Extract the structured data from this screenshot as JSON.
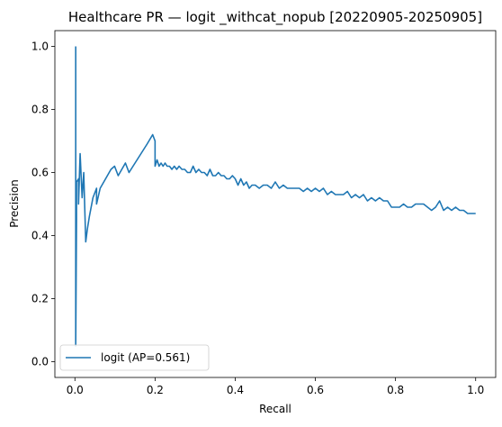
{
  "chart_data": {
    "type": "line",
    "title": "Healthcare PR — logit _withcat_nopub [20220905-20250905]",
    "xlabel": "Recall",
    "ylabel": "Precision",
    "xlim": [
      -0.05,
      1.05
    ],
    "ylim": [
      -0.05,
      1.05
    ],
    "xticks": [
      0.0,
      0.2,
      0.4,
      0.6,
      0.8,
      1.0
    ],
    "xtick_labels": [
      "0.0",
      "0.2",
      "0.4",
      "0.6",
      "0.8",
      "1.0"
    ],
    "yticks": [
      0.0,
      0.2,
      0.4,
      0.6,
      0.8,
      1.0
    ],
    "ytick_labels": [
      "0.0",
      "0.2",
      "0.4",
      "0.6",
      "0.8",
      "1.0"
    ],
    "grid": false,
    "legend_position": "lower-left",
    "series": [
      {
        "name": "logit (AP=0.561)",
        "color": "#1f77b4",
        "x": [
          0.002,
          0.002,
          0.004,
          0.004,
          0.009,
          0.009,
          0.013,
          0.018,
          0.018,
          0.022,
          0.027,
          0.027,
          0.031,
          0.036,
          0.045,
          0.054,
          0.054,
          0.063,
          0.072,
          0.081,
          0.09,
          0.099,
          0.108,
          0.108,
          0.117,
          0.126,
          0.135,
          0.15,
          0.165,
          0.18,
          0.194,
          0.194,
          0.2,
          0.2,
          0.205,
          0.21,
          0.215,
          0.22,
          0.225,
          0.23,
          0.236,
          0.242,
          0.248,
          0.254,
          0.26,
          0.267,
          0.274,
          0.281,
          0.288,
          0.295,
          0.302,
          0.309,
          0.316,
          0.323,
          0.33,
          0.337,
          0.344,
          0.351,
          0.358,
          0.365,
          0.372,
          0.379,
          0.386,
          0.393,
          0.4,
          0.407,
          0.414,
          0.421,
          0.428,
          0.435,
          0.442,
          0.45,
          0.46,
          0.47,
          0.48,
          0.49,
          0.5,
          0.51,
          0.52,
          0.53,
          0.54,
          0.55,
          0.56,
          0.57,
          0.58,
          0.59,
          0.6,
          0.61,
          0.62,
          0.63,
          0.64,
          0.65,
          0.66,
          0.67,
          0.68,
          0.69,
          0.7,
          0.71,
          0.72,
          0.73,
          0.74,
          0.75,
          0.76,
          0.77,
          0.78,
          0.79,
          0.8,
          0.81,
          0.82,
          0.83,
          0.84,
          0.85,
          0.86,
          0.87,
          0.88,
          0.89,
          0.9,
          0.91,
          0.92,
          0.93,
          0.94,
          0.95,
          0.96,
          0.97,
          0.98,
          0.99,
          1.0
        ],
        "y": [
          1.0,
          0.05,
          0.45,
          0.57,
          0.58,
          0.5,
          0.66,
          0.52,
          0.52,
          0.6,
          0.38,
          0.38,
          0.42,
          0.46,
          0.52,
          0.55,
          0.5,
          0.55,
          0.57,
          0.59,
          0.61,
          0.62,
          0.59,
          0.59,
          0.61,
          0.63,
          0.6,
          0.63,
          0.66,
          0.69,
          0.72,
          0.72,
          0.7,
          0.62,
          0.64,
          0.62,
          0.63,
          0.62,
          0.63,
          0.62,
          0.62,
          0.61,
          0.62,
          0.61,
          0.62,
          0.61,
          0.61,
          0.6,
          0.6,
          0.62,
          0.6,
          0.61,
          0.6,
          0.6,
          0.59,
          0.61,
          0.59,
          0.59,
          0.6,
          0.59,
          0.59,
          0.58,
          0.58,
          0.59,
          0.58,
          0.56,
          0.58,
          0.56,
          0.57,
          0.55,
          0.56,
          0.56,
          0.55,
          0.56,
          0.56,
          0.55,
          0.57,
          0.55,
          0.56,
          0.55,
          0.55,
          0.55,
          0.55,
          0.54,
          0.55,
          0.54,
          0.55,
          0.54,
          0.55,
          0.53,
          0.54,
          0.53,
          0.53,
          0.53,
          0.54,
          0.52,
          0.53,
          0.52,
          0.53,
          0.51,
          0.52,
          0.51,
          0.52,
          0.51,
          0.51,
          0.49,
          0.49,
          0.49,
          0.5,
          0.49,
          0.49,
          0.5,
          0.5,
          0.5,
          0.49,
          0.48,
          0.49,
          0.51,
          0.48,
          0.49,
          0.48,
          0.49,
          0.48,
          0.48,
          0.47,
          0.47,
          0.47
        ]
      }
    ]
  }
}
